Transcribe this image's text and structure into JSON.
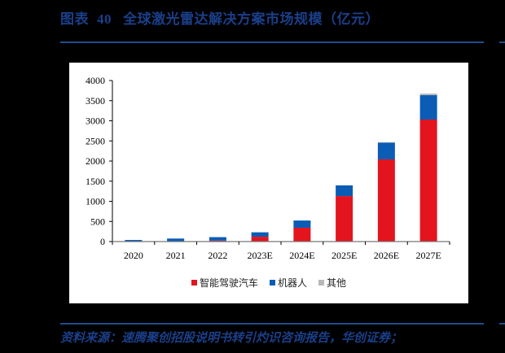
{
  "header": {
    "figure_label": "图表",
    "figure_number": "40",
    "title": "全球激光雷达解决方案市场规模（亿元）"
  },
  "footer": {
    "source": "资料来源：速腾聚创招股说明书转引灼识咨询报告，华创证券；"
  },
  "colors": {
    "autonomous": "#e3141e",
    "robot": "#0a5cb5",
    "other": "#b8b8b8",
    "header_blue": "#1d4f91"
  },
  "chart_data": {
    "type": "bar",
    "stacked": true,
    "title": "全球激光雷达解决方案市场规模（亿元）",
    "xlabel": "",
    "ylabel": "",
    "ylim": [
      0,
      4000
    ],
    "yticks": [
      0,
      500,
      1000,
      1500,
      2000,
      2500,
      3000,
      3500,
      4000
    ],
    "categories": [
      "2020",
      "2021",
      "2022",
      "2023E",
      "2024E",
      "2025E",
      "2026E",
      "2027E"
    ],
    "series": [
      {
        "name": "智能驾驶汽车",
        "color": "#e3141e",
        "values": [
          5,
          10,
          25,
          120,
          343,
          1130,
          2040,
          3030
        ]
      },
      {
        "name": "机器人",
        "color": "#0a5cb5",
        "values": [
          35,
          65,
          85,
          110,
          180,
          265,
          415,
          606
        ]
      },
      {
        "name": "其他",
        "color": "#b8b8b8",
        "values": [
          0,
          0,
          0,
          0,
          0,
          5,
          15,
          40
        ]
      }
    ],
    "legend_position": "bottom",
    "grid": false
  },
  "legend": [
    {
      "label": "智能驾驶汽车",
      "color": "#e3141e"
    },
    {
      "label": "机器人",
      "color": "#0a5cb5"
    },
    {
      "label": "其他",
      "color": "#b8b8b8"
    }
  ]
}
